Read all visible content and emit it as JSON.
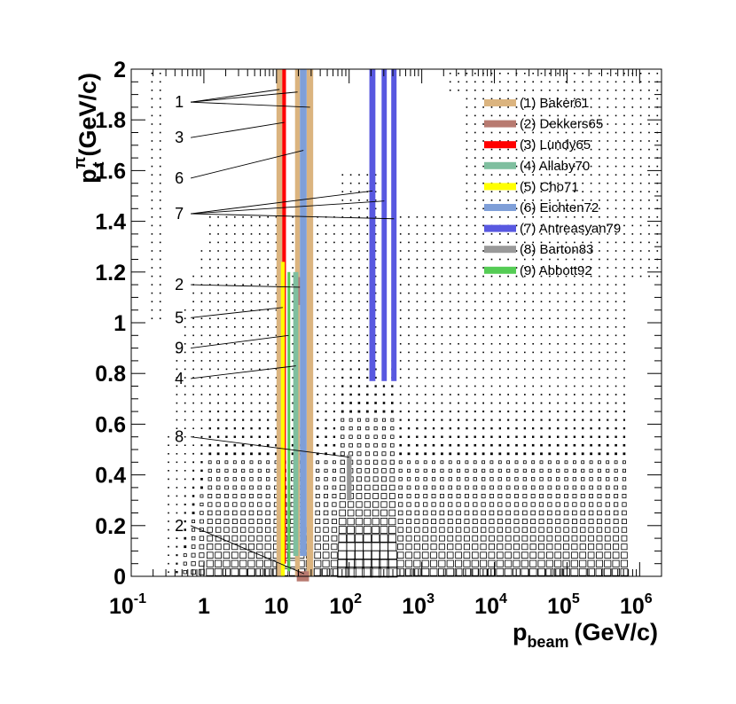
{
  "chart_data": {
    "type": "box-histogram",
    "xlabel": "p",
    "xlabel_sub": "beam",
    "xlabel_unit": "(GeV/c)",
    "ylabel": "p",
    "ylabel_sup": "π",
    "ylabel_sub": "t",
    "ylabel_unit": "(GeV/c)",
    "x_scale": "log",
    "xlim": [
      0.1,
      2000000
    ],
    "ylim": [
      0,
      2
    ],
    "x_ticks": [
      {
        "value": 0.1,
        "base": "10",
        "exp": "-1"
      },
      {
        "value": 1,
        "base": "1",
        "exp": ""
      },
      {
        "value": 10,
        "base": "10",
        "exp": ""
      },
      {
        "value": 100,
        "base": "10",
        "exp": "2"
      },
      {
        "value": 1000,
        "base": "10",
        "exp": "3"
      },
      {
        "value": 10000,
        "base": "10",
        "exp": "4"
      },
      {
        "value": 100000,
        "base": "10",
        "exp": "5"
      },
      {
        "value": 1000000,
        "base": "10",
        "exp": "6"
      }
    ],
    "y_ticks": [
      {
        "value": 0,
        "label": "0"
      },
      {
        "value": 0.2,
        "label": "0.2"
      },
      {
        "value": 0.4,
        "label": "0.4"
      },
      {
        "value": 0.6,
        "label": "0.6"
      },
      {
        "value": 0.8,
        "label": "0.8"
      },
      {
        "value": 1,
        "label": "1"
      },
      {
        "value": 1.2,
        "label": "1.2"
      },
      {
        "value": 1.4,
        "label": "1.4"
      },
      {
        "value": 1.6,
        "label": "1.6"
      },
      {
        "value": 1.8,
        "label": "1.8"
      },
      {
        "value": 2,
        "label": "2"
      }
    ],
    "series": [
      {
        "name": "(1) Baker61",
        "color": "#dbb47f",
        "bands": [
          {
            "x": [
              10,
              12
            ],
            "y": [
              0,
              2
            ]
          },
          {
            "x": [
              18,
              21
            ],
            "y": [
              0,
              2
            ]
          },
          {
            "x": [
              26,
              32
            ],
            "y": [
              0,
              2
            ]
          }
        ]
      },
      {
        "name": "(2) Dekkers65",
        "color": "#b87a70",
        "bands": [
          {
            "x": [
              19,
              24
            ],
            "y": [
              1.07,
              1.18
            ]
          },
          {
            "x": [
              19,
              28
            ],
            "y": [
              -0.02,
              0.02
            ]
          }
        ]
      },
      {
        "name": "(3) Lundy65",
        "color": "#ff0000",
        "bands": [
          {
            "x": [
              12,
              13.5
            ],
            "y": [
              0.05,
              2
            ]
          }
        ]
      },
      {
        "name": "(4) Allaby70",
        "color": "#7fbf9f",
        "bands": [
          {
            "x": [
              17,
              20
            ],
            "y": [
              0.08,
              1.2
            ]
          }
        ]
      },
      {
        "name": "(5) Cho71",
        "color": "#ffff00",
        "bands": [
          {
            "x": [
              11.5,
              13
            ],
            "y": [
              0,
              1.24
            ]
          }
        ]
      },
      {
        "name": "(6) Eichten72",
        "color": "#7f9fd8",
        "bands": [
          {
            "x": [
              21,
              26
            ],
            "y": [
              0.08,
              2
            ]
          }
        ]
      },
      {
        "name": "(7) Antreasyan79",
        "color": "#5858e0",
        "bands": [
          {
            "x": [
              190,
              230
            ],
            "y": [
              0.77,
              2
            ]
          },
          {
            "x": [
              280,
              330
            ],
            "y": [
              0.77,
              2
            ]
          },
          {
            "x": [
              380,
              450
            ],
            "y": [
              0.77,
              2
            ]
          }
        ]
      },
      {
        "name": "(8) Barton83",
        "color": "#999999",
        "bands": [
          {
            "x": [
              93,
              108
            ],
            "y": [
              0.3,
              0.48
            ]
          }
        ]
      },
      {
        "name": "(9) Abbott92",
        "color": "#55cc55",
        "bands": [
          {
            "x": [
              14.2,
              15.2
            ],
            "y": [
              0.02,
              1.2
            ]
          }
        ]
      }
    ],
    "annotations": [
      {
        "label": "1",
        "text_at": [
          0.78,
          1.87
        ],
        "targets": [
          [
            11,
            1.92
          ],
          [
            19.5,
            1.91
          ],
          [
            29,
            1.85
          ]
        ]
      },
      {
        "label": "3",
        "text_at": [
          0.78,
          1.73
        ],
        "targets": [
          [
            12.8,
            1.79
          ]
        ]
      },
      {
        "label": "6",
        "text_at": [
          0.78,
          1.57
        ],
        "targets": [
          [
            23.5,
            1.68
          ]
        ]
      },
      {
        "label": "7",
        "text_at": [
          0.78,
          1.43
        ],
        "targets": [
          [
            210,
            1.52
          ],
          [
            305,
            1.48
          ],
          [
            415,
            1.41
          ]
        ]
      },
      {
        "label": "2",
        "text_at": [
          0.78,
          1.15
        ],
        "targets": [
          [
            21,
            1.14
          ]
        ]
      },
      {
        "label": "5",
        "text_at": [
          0.78,
          1.02
        ],
        "targets": [
          [
            12.2,
            1.06
          ]
        ]
      },
      {
        "label": "9",
        "text_at": [
          0.78,
          0.9
        ],
        "targets": [
          [
            14.7,
            0.95
          ]
        ]
      },
      {
        "label": "4",
        "text_at": [
          0.78,
          0.78
        ],
        "targets": [
          [
            18.5,
            0.83
          ]
        ]
      },
      {
        "label": "8",
        "text_at": [
          0.78,
          0.55
        ],
        "targets": [
          [
            100,
            0.47
          ]
        ]
      },
      {
        "label": "2",
        "text_at": [
          0.78,
          0.2
        ],
        "targets": [
          [
            24,
            0.01
          ]
        ]
      }
    ],
    "legend": {
      "position": "top-right"
    },
    "grid": false
  }
}
